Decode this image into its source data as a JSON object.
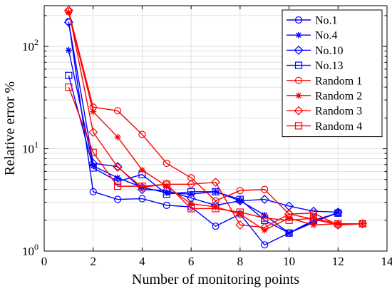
{
  "chart_data": {
    "type": "line",
    "xlabel": "Number of monitoring points",
    "ylabel": "Relative error %",
    "xlim": [
      0,
      14
    ],
    "ylim": [
      1,
      250
    ],
    "yscale": "log",
    "xticks": [
      0,
      2,
      4,
      6,
      8,
      10,
      12,
      14
    ],
    "yticks": [
      {
        "value": 1,
        "base": "10",
        "exp": "0"
      },
      {
        "value": 10,
        "base": "10",
        "exp": "1"
      },
      {
        "value": 100,
        "base": "10",
        "exp": "2"
      }
    ],
    "grid": true,
    "legend_position": "top-right",
    "series": [
      {
        "name": "No.1",
        "color": "#0000ff",
        "marker": "circle",
        "x": [
          1,
          2,
          3,
          4,
          5,
          6,
          7,
          8,
          9,
          10,
          11,
          12
        ],
        "y": [
          175,
          3.8,
          3.2,
          3.25,
          2.8,
          2.7,
          1.75,
          2.3,
          1.15,
          1.5,
          1.95,
          2.35
        ]
      },
      {
        "name": "No.4",
        "color": "#0000ff",
        "marker": "asterisk",
        "x": [
          1,
          2,
          3,
          4,
          5,
          6,
          7,
          8,
          9,
          10,
          11,
          12
        ],
        "y": [
          92,
          6.8,
          5.2,
          4.2,
          3.7,
          3.6,
          3.8,
          3.1,
          2.25,
          1.5,
          1.9,
          2.4
        ]
      },
      {
        "name": "No.10",
        "color": "#0000ff",
        "marker": "diamond",
        "x": [
          1,
          2,
          3,
          4,
          5,
          6,
          7,
          8,
          9,
          10,
          11,
          12
        ],
        "y": [
          172,
          7.2,
          6.7,
          4.0,
          3.9,
          3.3,
          2.8,
          3.1,
          3.2,
          2.75,
          2.45,
          2.4
        ]
      },
      {
        "name": "No.13",
        "color": "#0000ff",
        "marker": "square",
        "x": [
          1,
          2,
          3,
          4,
          5,
          6,
          7,
          8,
          9,
          10,
          11,
          12
        ],
        "y": [
          52,
          6.5,
          4.8,
          5.6,
          3.6,
          3.8,
          3.8,
          3.2,
          2.0,
          1.5,
          2.0,
          2.35
        ]
      },
      {
        "name": "Random 1",
        "color": "#ff0000",
        "marker": "circle",
        "x": [
          1,
          2,
          3,
          4,
          5,
          6,
          7,
          8,
          9,
          10,
          11,
          12,
          13
        ],
        "y": [
          220,
          25.5,
          23.5,
          13.8,
          7.2,
          5.2,
          3.1,
          3.9,
          4.0,
          2.3,
          2.35,
          1.8,
          1.85
        ]
      },
      {
        "name": "Random 2",
        "color": "#ff0000",
        "marker": "asterisk",
        "x": [
          1,
          2,
          3,
          4,
          5,
          6,
          7,
          8,
          9,
          10,
          11,
          12,
          13
        ],
        "y": [
          215,
          23.0,
          13.0,
          6.2,
          4.3,
          2.9,
          2.7,
          2.3,
          1.6,
          2.1,
          1.8,
          1.85,
          1.85
        ]
      },
      {
        "name": "Random 3",
        "color": "#ff0000",
        "marker": "diamond",
        "x": [
          1,
          2,
          3,
          4,
          5,
          6,
          7,
          8,
          9,
          10,
          11,
          12,
          13
        ],
        "y": [
          225,
          14.5,
          6.6,
          4.2,
          4.5,
          4.5,
          4.7,
          1.8,
          1.7,
          2.3,
          2.05,
          1.8,
          1.85
        ]
      },
      {
        "name": "Random 4",
        "color": "#ff0000",
        "marker": "square",
        "x": [
          1,
          2,
          3,
          4,
          5,
          6,
          7,
          8,
          9,
          10,
          11,
          12,
          13
        ],
        "y": [
          40,
          9.2,
          4.3,
          4.3,
          4.5,
          2.6,
          2.6,
          2.4,
          2.1,
          2.0,
          2.1,
          1.85,
          1.85
        ]
      }
    ]
  }
}
